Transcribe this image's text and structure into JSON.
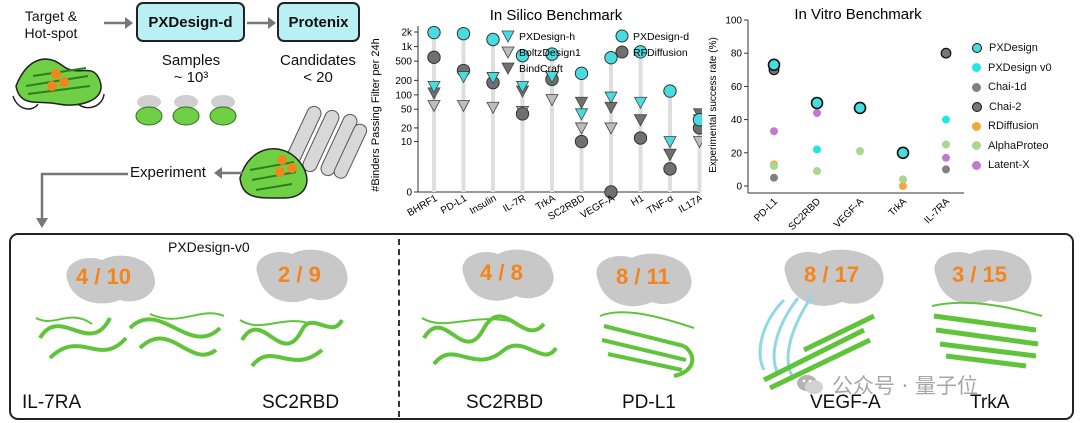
{
  "pipeline": {
    "target_label": "Target &\nHot-spot",
    "step1_label": "PXDesign-d",
    "step2_label": "Protenix",
    "samples_label": "Samples\n~ 10³",
    "candidates_label": "Candidates\n< 20",
    "experiment_label": "Experiment"
  },
  "colors": {
    "cyan": "#47dce0",
    "green": "#6fcf45",
    "gray": "#bdbdbd",
    "orange": "#f4841c",
    "purple": "#c179cf"
  },
  "in_silico": {
    "title": "In Silico Benchmark",
    "ylabel": "#Binders Passing Filter per 24h",
    "y_ticks": [
      "0",
      "10",
      "20",
      "50",
      "100",
      "200",
      "500",
      "1k",
      "2k"
    ],
    "legend": [
      "PXDesign-h",
      "BoltzDesign1",
      "BindCraft",
      "PXDesign-d",
      "RFDiffusion"
    ]
  },
  "in_vitro": {
    "title": "In Vitro Benchmark",
    "ylabel": "Experimental success rate (%)",
    "y_ticks": [
      "0",
      "20",
      "40",
      "60",
      "80",
      "100"
    ],
    "legend": [
      "PXDesign",
      "PXDesign v0",
      "Chai-1d",
      "Chai-2",
      "RDiffusion",
      "AlphaProteo",
      "Latent-X"
    ]
  },
  "chart_data": [
    {
      "type": "scatter",
      "title": "In Silico Benchmark",
      "ylabel": "#Binders Passing Filter per 24h",
      "yscale": "symlog",
      "categories": [
        "BHRF1",
        "PD-L1",
        "Insulin",
        "IL-7R",
        "TrkA",
        "SC2RBD",
        "VEGF-A",
        "H1",
        "TNF-α",
        "IL17A"
      ],
      "series": [
        {
          "name": "PXDesign-h",
          "marker": "triangle-down",
          "color": "#47dce0",
          "values": [
            150,
            240,
            230,
            150,
            240,
            40,
            90,
            70,
            10,
            30
          ]
        },
        {
          "name": "BoltzDesign1",
          "marker": "triangle-down",
          "color": "#bdbdbd",
          "values": [
            60,
            60,
            55,
            45,
            80,
            20,
            20,
            30,
            5,
            10
          ]
        },
        {
          "name": "BindCraft",
          "marker": "triangle-down",
          "color": "#707070",
          "values": [
            110,
            250,
            230,
            120,
            230,
            70,
            55,
            30,
            5,
            40
          ]
        },
        {
          "name": "PXDesign-d",
          "marker": "circle",
          "color": "#47dce0",
          "values": [
            1950,
            1850,
            1400,
            650,
            700,
            280,
            590,
            780,
            120,
            30
          ]
        },
        {
          "name": "RFDiffusion",
          "marker": "circle",
          "color": "#707070",
          "values": [
            600,
            320,
            180,
            40,
            210,
            10,
            0,
            12,
            2,
            20
          ]
        }
      ]
    },
    {
      "type": "scatter",
      "title": "In Vitro Benchmark",
      "ylabel": "Experimental success rate (%)",
      "ylim": [
        0,
        100
      ],
      "categories": [
        "PD-L1",
        "SC2RBD",
        "VEGF-A",
        "TrkA",
        "IL-7RA"
      ],
      "series": [
        {
          "name": "PXDesign",
          "color": "#47dce0",
          "values": [
            73,
            50,
            47,
            20,
            null
          ]
        },
        {
          "name": "PXDesign v0",
          "color": "#22e6e6",
          "values": [
            null,
            22,
            null,
            null,
            40
          ]
        },
        {
          "name": "Chai-1d",
          "color": "#808080",
          "values": [
            5,
            null,
            null,
            null,
            10
          ]
        },
        {
          "name": "Chai-2",
          "color": "#777777",
          "values": [
            70,
            50,
            null,
            20,
            80
          ]
        },
        {
          "name": "RDiffusion",
          "color": "#f4a73c",
          "values": [
            13,
            null,
            null,
            0,
            null
          ]
        },
        {
          "name": "AlphaProteo",
          "color": "#a8d890",
          "values": [
            12,
            9,
            21,
            4,
            25
          ]
        },
        {
          "name": "Latent-X",
          "color": "#c179cf",
          "values": [
            33,
            44,
            null,
            null,
            17
          ]
        }
      ]
    }
  ],
  "results": {
    "left_title": "PXDesign-v0",
    "cards": [
      {
        "fraction": "4 / 10",
        "label": "IL-7RA"
      },
      {
        "fraction": "2 / 9",
        "label": "SC2RBD"
      },
      {
        "fraction": "4 / 8",
        "label": "SC2RBD"
      },
      {
        "fraction": "8 / 11",
        "label": "PD-L1"
      },
      {
        "fraction": "8 / 17",
        "label": "VEGF-A"
      },
      {
        "fraction": "3 / 15",
        "label": "TrkA"
      }
    ],
    "watermark": "公众号 · 量子位"
  }
}
